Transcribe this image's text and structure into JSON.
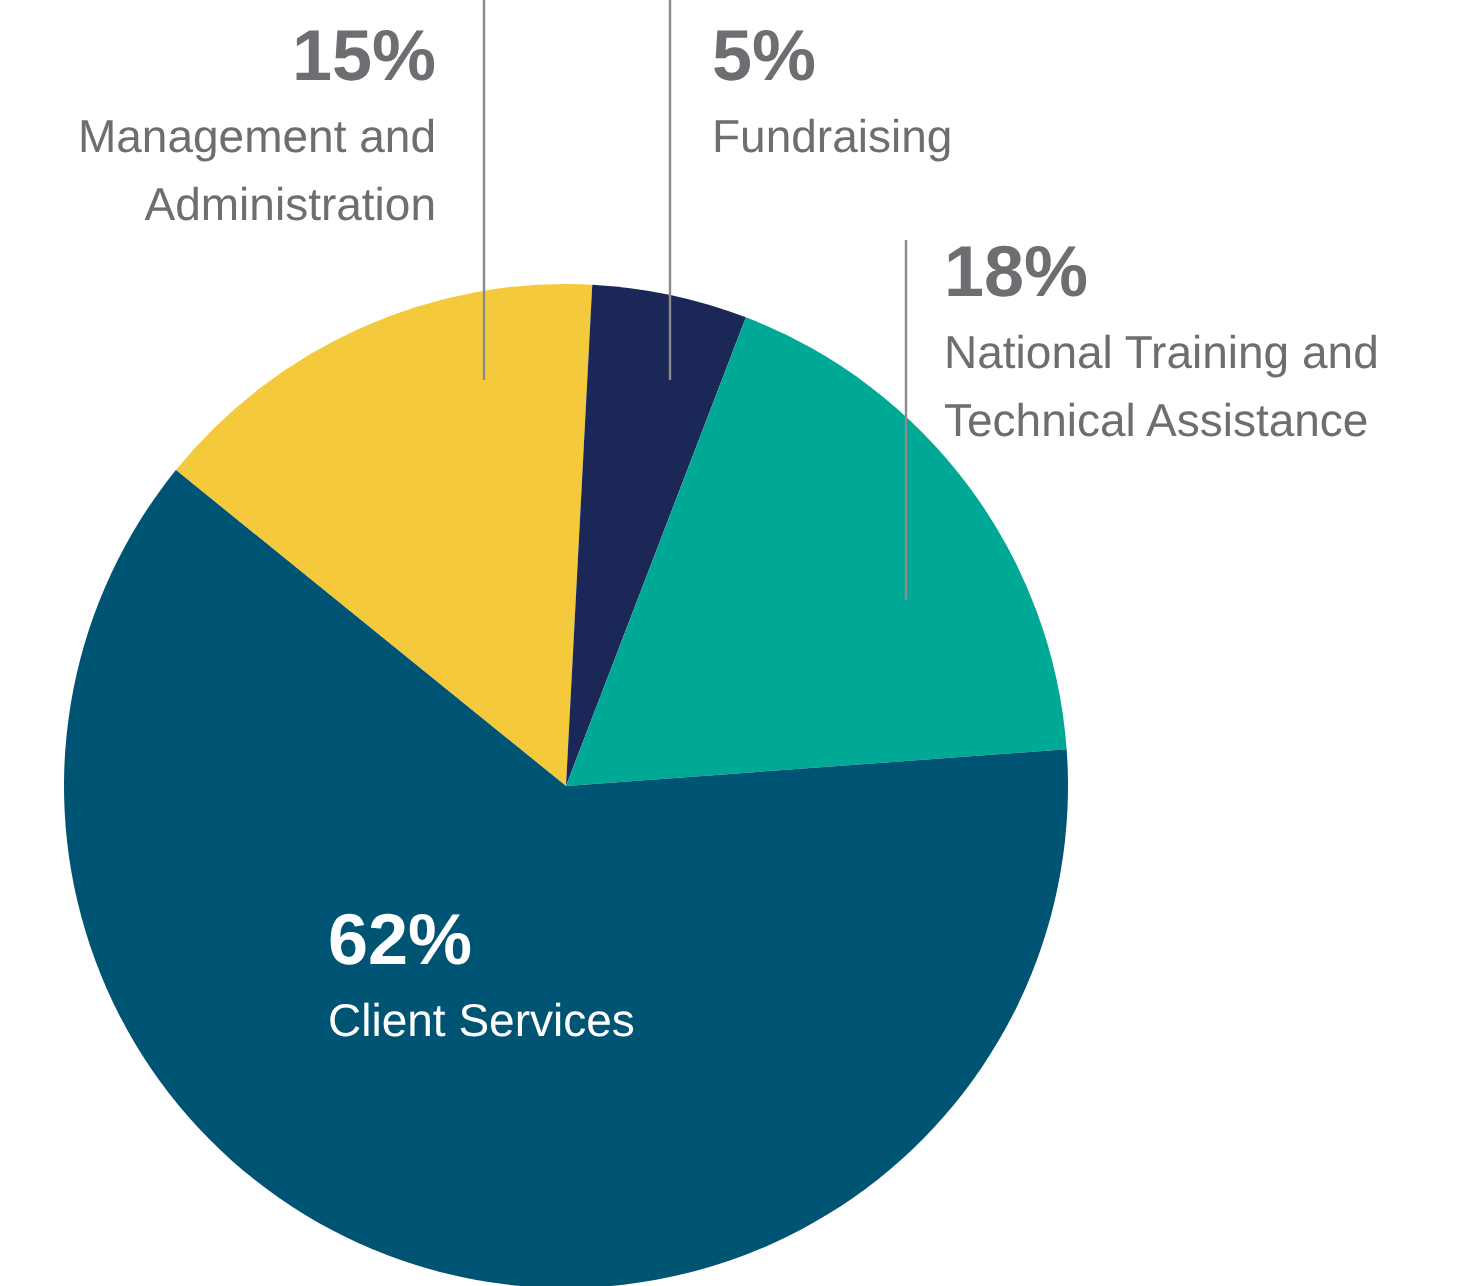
{
  "chart_data": {
    "type": "pie",
    "categories": [
      "Management and Administration",
      "Fundraising",
      "National Training and Technical Assistance",
      "Client Services"
    ],
    "values": [
      15,
      5,
      18,
      62
    ],
    "colors": [
      "#f4c93c",
      "#1b2857",
      "#00a896",
      "#005473"
    ],
    "value_labels": [
      "15%",
      "5%",
      "18%",
      "62%"
    ]
  }
}
